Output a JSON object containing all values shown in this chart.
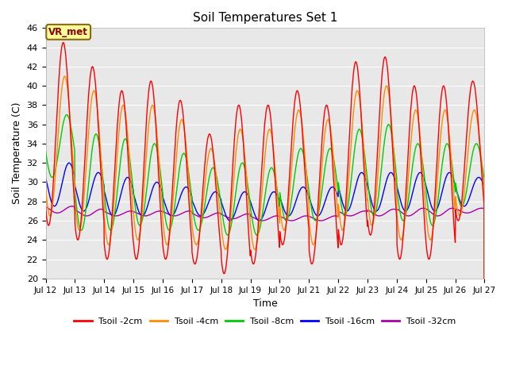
{
  "title": "Soil Temperatures Set 1",
  "xlabel": "Time",
  "ylabel": "Soil Temperature (C)",
  "ylim": [
    20,
    46
  ],
  "yticks": [
    20,
    22,
    24,
    26,
    28,
    30,
    32,
    34,
    36,
    38,
    40,
    42,
    44,
    46
  ],
  "x_start": 12,
  "x_end": 27,
  "xtick_days": [
    12,
    13,
    14,
    15,
    16,
    17,
    18,
    19,
    20,
    21,
    22,
    23,
    24,
    25,
    26,
    27
  ],
  "colors": {
    "Tsoil -2cm": "#ff0000",
    "Tsoil -4cm": "#ff8c00",
    "Tsoil -8cm": "#00cc00",
    "Tsoil -16cm": "#0000ff",
    "Tsoil -32cm": "#aa00aa"
  },
  "plot_bg": "#e8e8e8",
  "fig_bg": "#ffffff",
  "annotation_text": "VR_met",
  "annotation_fg": "#8b0000",
  "annotation_bg": "#ffff99",
  "annotation_border": "#8b6914"
}
